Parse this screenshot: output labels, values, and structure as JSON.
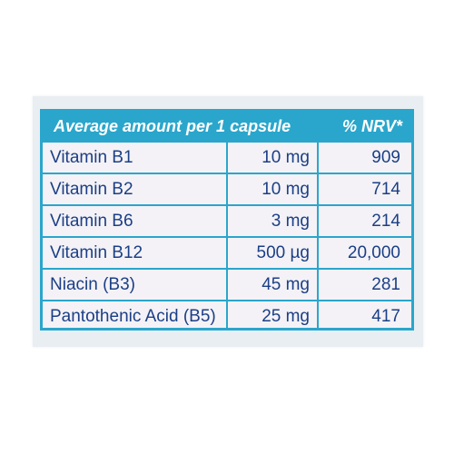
{
  "nutrition_table": {
    "header": {
      "amount_label": "Average amount per 1 capsule",
      "nrv_label": "% NRV*"
    },
    "rows": [
      {
        "name": "Vitamin B1",
        "amount": "10 mg",
        "nrv": "909"
      },
      {
        "name": "Vitamin B2",
        "amount": "10 mg",
        "nrv": "714"
      },
      {
        "name": "Vitamin B6",
        "amount": "3 mg",
        "nrv": "214"
      },
      {
        "name": "Vitamin B12",
        "amount": "500 µg",
        "nrv": "20,000"
      },
      {
        "name": "Niacin (B3)",
        "amount": "45 mg",
        "nrv": "281"
      },
      {
        "name": "Pantothenic Acid (B5)",
        "amount": "25 mg",
        "nrv": "417"
      }
    ]
  },
  "colors": {
    "header_bg": "#2aa6cc",
    "text": "#1b3f86",
    "cell_bg": "#f4f2f6"
  }
}
